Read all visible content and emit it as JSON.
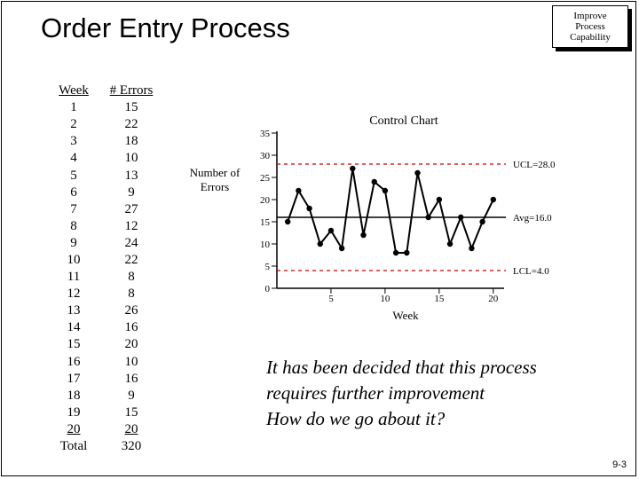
{
  "slide": {
    "title": "Order Entry Process",
    "badge_lines": [
      "Improve",
      "Process",
      "Capability"
    ],
    "page_number": "9-3",
    "note_lines": [
      "It has been decided that this process",
      "requires further improvement",
      "How do we go about it?"
    ]
  },
  "table": {
    "headers": [
      "Week",
      "# Errors"
    ],
    "rows": [
      [
        "1",
        "15"
      ],
      [
        "2",
        "22"
      ],
      [
        "3",
        "18"
      ],
      [
        "4",
        "10"
      ],
      [
        "5",
        "13"
      ],
      [
        "6",
        "9"
      ],
      [
        "7",
        "27"
      ],
      [
        "8",
        "12"
      ],
      [
        "9",
        "24"
      ],
      [
        "10",
        "22"
      ],
      [
        "11",
        "8"
      ],
      [
        "12",
        "8"
      ],
      [
        "13",
        "26"
      ],
      [
        "14",
        "16"
      ],
      [
        "15",
        "20"
      ],
      [
        "16",
        "10"
      ],
      [
        "17",
        "16"
      ],
      [
        "18",
        "9"
      ],
      [
        "19",
        "15"
      ],
      [
        "20",
        "20"
      ]
    ],
    "total": [
      "Total",
      "320"
    ]
  },
  "chart_data": {
    "type": "line",
    "title": "Control Chart",
    "xlabel": "Week",
    "ylabel": "Number of Errors",
    "x": [
      1,
      2,
      3,
      4,
      5,
      6,
      7,
      8,
      9,
      10,
      11,
      12,
      13,
      14,
      15,
      16,
      17,
      18,
      19,
      20
    ],
    "series": [
      {
        "values": [
          15,
          22,
          18,
          10,
          13,
          9,
          27,
          12,
          24,
          22,
          8,
          8,
          26,
          16,
          20,
          10,
          16,
          9,
          15,
          20
        ]
      }
    ],
    "xticks": [
      5,
      10,
      15,
      20
    ],
    "yticks": [
      0,
      5,
      10,
      15,
      20,
      25,
      30,
      35
    ],
    "xlim": [
      0,
      21
    ],
    "ylim": [
      0,
      35
    ],
    "reference_lines": [
      {
        "label": "UCL=28.0",
        "value": 28.0,
        "style": "dashed",
        "color": "#cc0000"
      },
      {
        "label": "Avg=16.0",
        "value": 16.0,
        "style": "solid",
        "color": "#000000"
      },
      {
        "label": "LCL=4.0",
        "value": 4.0,
        "style": "dashed",
        "color": "#cc0000"
      }
    ]
  }
}
